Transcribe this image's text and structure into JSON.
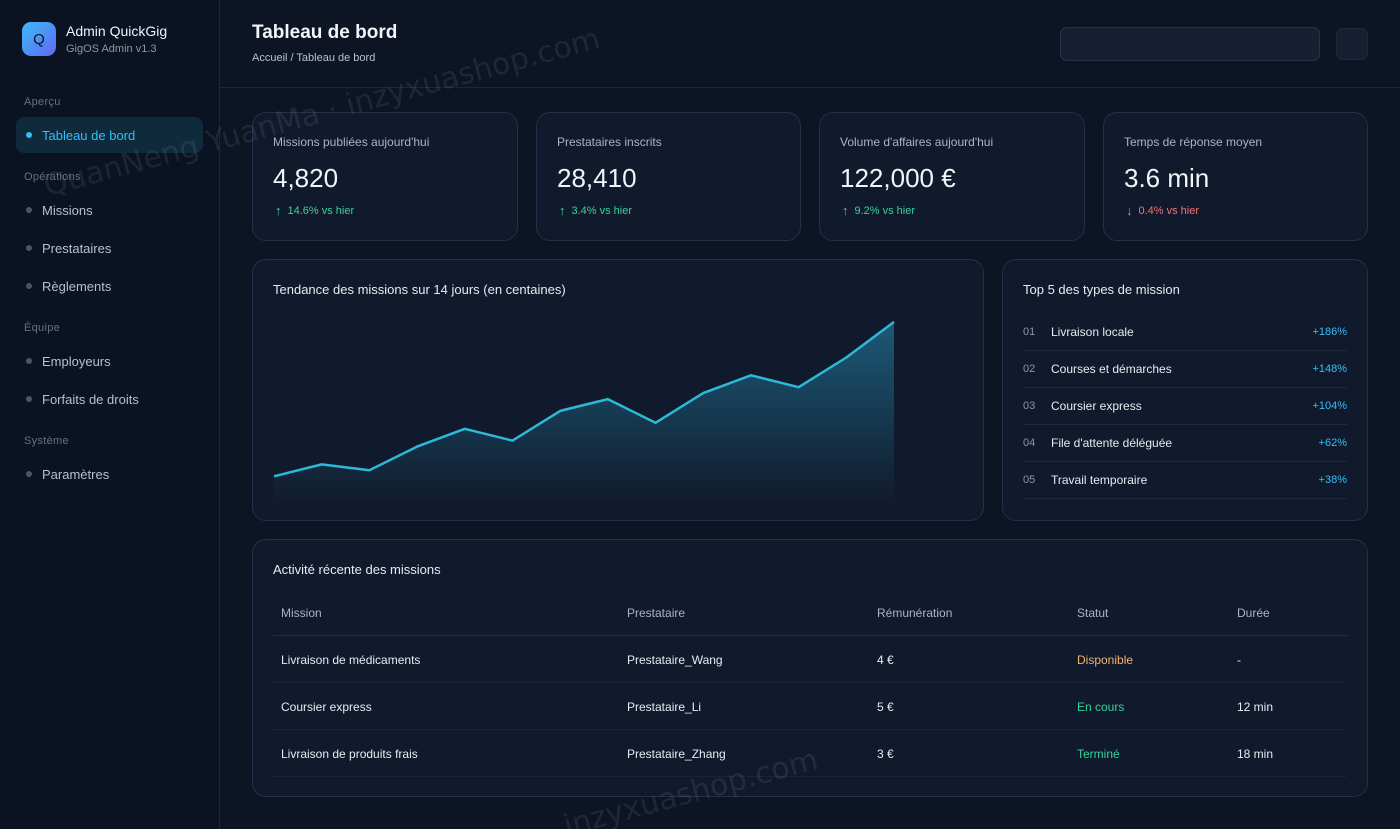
{
  "brand": {
    "logo_letter": "Q",
    "name": "Admin QuickGig",
    "subtitle": "GigOS Admin v1.3"
  },
  "sidebar": {
    "sections": [
      {
        "label": "Aperçu",
        "items": [
          {
            "label": "Tableau de bord",
            "active": true
          }
        ]
      },
      {
        "label": "Opérations",
        "items": [
          {
            "label": "Missions"
          },
          {
            "label": "Prestataires"
          },
          {
            "label": "Règlements"
          }
        ]
      },
      {
        "label": "Équipe",
        "items": [
          {
            "label": "Employeurs"
          },
          {
            "label": "Forfaits de droits"
          }
        ]
      },
      {
        "label": "Système",
        "items": [
          {
            "label": "Paramètres"
          }
        ]
      }
    ]
  },
  "header": {
    "title": "Tableau de bord",
    "breadcrumb": "Accueil / Tableau de bord",
    "search_value": ""
  },
  "kpis": [
    {
      "label": "Missions publiées aujourd'hui",
      "value": "4,820",
      "arrow": "↑",
      "change": "14.6% vs hier",
      "direction": "up"
    },
    {
      "label": "Prestataires inscrits",
      "value": "28,410",
      "arrow": "↑",
      "change": "3.4% vs hier",
      "direction": "up"
    },
    {
      "label": "Volume d'affaires aujourd'hui",
      "value": "122,000 €",
      "arrow": "↑",
      "change": "9.2% vs hier",
      "direction": "up"
    },
    {
      "label": "Temps de réponse moyen",
      "value": "3.6 min",
      "arrow": "↓",
      "change": "0.4% vs hier",
      "direction": "down"
    }
  ],
  "trend": {
    "title": "Tendance des missions sur 14 jours (en centaines)",
    "chart_data": {
      "type": "area",
      "x": [
        1,
        2,
        3,
        4,
        5,
        6,
        7,
        8,
        9,
        10,
        11,
        12,
        13,
        14
      ],
      "values": [
        22,
        24,
        23,
        27,
        30,
        28,
        33,
        35,
        31,
        36,
        39,
        37,
        42,
        48
      ],
      "ylim": [
        18,
        50
      ],
      "grid": false,
      "colors": {
        "line": "#2eb8d8",
        "fill": "#1f6f8f"
      }
    }
  },
  "top_types": {
    "title": "Top 5 des types de mission",
    "items": [
      {
        "rank": "01",
        "name": "Livraison locale",
        "pct": "+186%"
      },
      {
        "rank": "02",
        "name": "Courses et démarches",
        "pct": "+148%"
      },
      {
        "rank": "03",
        "name": "Coursier express",
        "pct": "+104%"
      },
      {
        "rank": "04",
        "name": "File d'attente déléguée",
        "pct": "+62%"
      },
      {
        "rank": "05",
        "name": "Travail temporaire",
        "pct": "+38%"
      }
    ]
  },
  "activity": {
    "title": "Activité récente des missions",
    "columns": [
      "Mission",
      "Prestataire",
      "Rémunération",
      "Statut",
      "Durée"
    ],
    "rows": [
      {
        "mission": "Livraison de médicaments",
        "provider": "Prestataire_Wang",
        "pay": "4 €",
        "status": "Disponible",
        "status_color": "orange",
        "duration": "-"
      },
      {
        "mission": "Coursier express",
        "provider": "Prestataire_Li",
        "pay": "5 €",
        "status": "En cours",
        "status_color": "green",
        "duration": "12 min"
      },
      {
        "mission": "Livraison de produits frais",
        "provider": "Prestataire_Zhang",
        "pay": "3 €",
        "status": "Terminé",
        "status_color": "green",
        "duration": "18 min"
      }
    ]
  },
  "watermarks": [
    "QuanNeng YuanMa · inzyxuashop.com",
    "inzyxuashop.com"
  ]
}
